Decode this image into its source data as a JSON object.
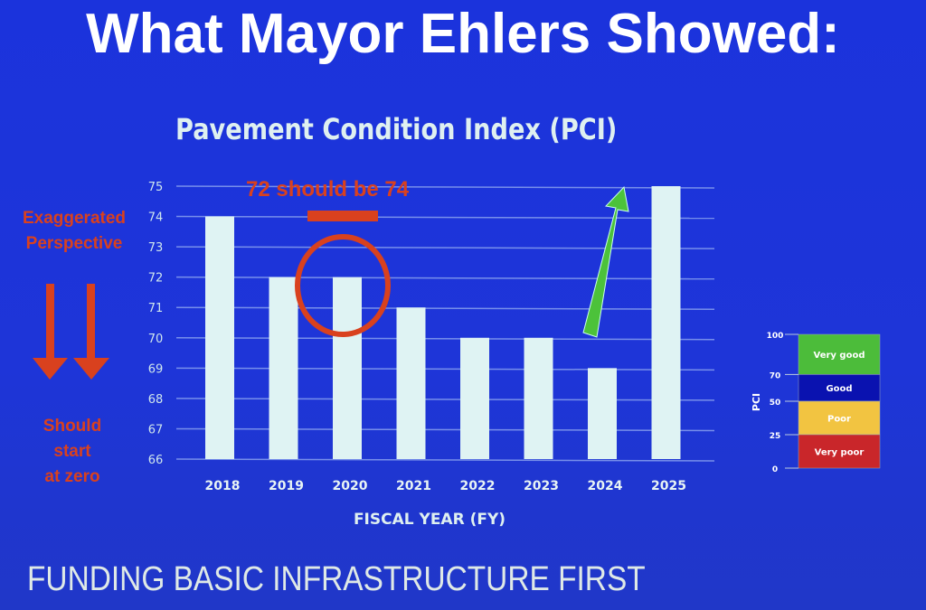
{
  "headline": "What Mayor Ehlers Showed:",
  "chart_data": {
    "type": "bar",
    "title": "Pavement Condition Index (PCI)",
    "xlabel": "FISCAL YEAR (FY)",
    "ylabel": "",
    "categories": [
      "2018",
      "2019",
      "2020",
      "2021",
      "2022",
      "2023",
      "2024",
      "2025"
    ],
    "values": [
      74,
      72,
      72,
      71,
      70,
      70,
      69,
      75
    ],
    "ylim": [
      66,
      75
    ],
    "yticks": [
      "66",
      "67",
      "68",
      "69",
      "70",
      "71",
      "72",
      "73",
      "74",
      "75"
    ],
    "grid": true,
    "bar_color": "#dff3f3"
  },
  "legend_scale": {
    "axis_label": "PCI",
    "ticks": [
      "0",
      "25",
      "50",
      "70",
      "100"
    ],
    "bands": [
      {
        "label": "Very good",
        "from": 70,
        "to": 100,
        "color": "#4cbc3a"
      },
      {
        "label": "Good",
        "from": 50,
        "to": 70,
        "color": "#0a12b0"
      },
      {
        "label": "Poor",
        "from": 25,
        "to": 50,
        "color": "#f2c441"
      },
      {
        "label": "Very poor",
        "from": 0,
        "to": 25,
        "color": "#c9262a"
      }
    ]
  },
  "annotations": {
    "correction": "72 should be 74",
    "perspective": "Exaggerated Perspective",
    "zero_note": [
      "Should",
      "start",
      "at zero"
    ],
    "red": "#d9411e",
    "green": "#4cc23a"
  },
  "footer": "FUNDING BASIC INFRASTRUCTURE FIRST"
}
